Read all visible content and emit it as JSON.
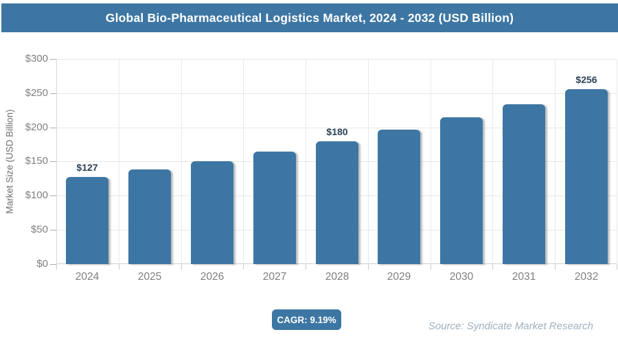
{
  "header": {
    "title": "Global Bio-Pharmaceutical Logistics Market, 2024 - 2032 (USD Billion)"
  },
  "chart_data": {
    "type": "bar",
    "title": "Global Bio-Pharmaceutical Logistics Market, 2024 - 2032 (USD Billion)",
    "categories": [
      "2024",
      "2025",
      "2026",
      "2027",
      "2028",
      "2029",
      "2030",
      "2031",
      "2032"
    ],
    "values": [
      127,
      138,
      151,
      165,
      180,
      197,
      215,
      234,
      256
    ],
    "data_labels": [
      {
        "index": 0,
        "text": "$127"
      },
      {
        "index": 4,
        "text": "$180"
      },
      {
        "index": 8,
        "text": "$256"
      }
    ],
    "xlabel": "",
    "ylabel": "Market Size (USD Billion)",
    "ylim": [
      0,
      300
    ],
    "y_ticks": [
      {
        "value": 0,
        "label": "$0"
      },
      {
        "value": 50,
        "label": "$50"
      },
      {
        "value": 100,
        "label": "$100"
      },
      {
        "value": 150,
        "label": "$150"
      },
      {
        "value": 200,
        "label": "$200"
      },
      {
        "value": 250,
        "label": "$250"
      },
      {
        "value": 300,
        "label": "$300"
      }
    ],
    "grid": true,
    "legend": "none",
    "bar_color": "#3d76a3"
  },
  "footer": {
    "cagr_label": "CAGR: 9.19%",
    "source": "Source: Syndicate Market Research"
  },
  "colors": {
    "accent": "#3d76a3",
    "value_label": "#2b4257",
    "axis_text": "#7f7f7f",
    "gridline": "#e8e8e8",
    "source_text": "#9fb0bd"
  }
}
